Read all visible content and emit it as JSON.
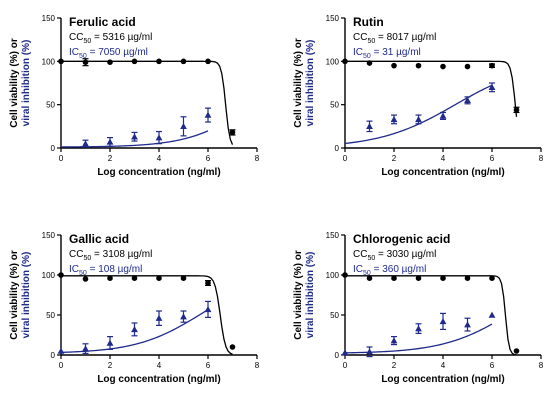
{
  "chart_data": [
    {
      "type": "scatter",
      "title": "Ferulic acid",
      "cc_label": "CC",
      "cc_sub": "50",
      "cc_value": " = 5316 µg/ml",
      "ic_label": "IC",
      "ic_sub": "50",
      "ic_value": " = 7050 µg/ml",
      "xlabel": "Log concentration (ng/ml)",
      "ylabel_1": "Cell viability (%) or",
      "ylabel_2": "viral inhibition (%)",
      "xlim": [
        0,
        8
      ],
      "ylim": [
        0,
        150
      ],
      "xticks": [
        "0",
        "2",
        "4",
        "6",
        "8"
      ],
      "yticks": [
        "0",
        "50",
        "100",
        "150"
      ],
      "series": [
        {
          "marker": "circle",
          "color": "#000000",
          "x": [
            0,
            1,
            2,
            3,
            4,
            5,
            6,
            7
          ],
          "y": [
            100,
            99,
            99,
            100,
            100,
            100,
            100,
            18
          ],
          "err": [
            0,
            4,
            0,
            0,
            0,
            0,
            0,
            3
          ],
          "fit_top": 100,
          "fit_bottom": 0,
          "fit_logec50": 6.72,
          "fit_hill": 5
        },
        {
          "marker": "triangle",
          "color": "#1f2a8c",
          "x": [
            1,
            2,
            3,
            4,
            5,
            6
          ],
          "y": [
            5,
            7,
            13,
            12,
            25,
            38
          ],
          "err": [
            4,
            5,
            5,
            7,
            11,
            8
          ],
          "fit_top": 100,
          "fit_bottom": 1,
          "fit_logec50": 7.8,
          "fit_hill": 0.35
        }
      ]
    },
    {
      "type": "scatter",
      "title": "Rutin",
      "cc_label": "CC",
      "cc_sub": "50",
      "cc_value": " = 8017 µg/ml",
      "ic_label": "IC",
      "ic_sub": "50",
      "ic_value": " = 31 µg/ml",
      "xlabel": "Log concentration (ng/ml)",
      "ylabel_1": "Cell viability (%) or",
      "ylabel_2": "viral inhibition (%)",
      "xlim": [
        0,
        8
      ],
      "ylim": [
        0,
        150
      ],
      "xticks": [
        "0",
        "2",
        "4",
        "6",
        "8"
      ],
      "yticks": [
        "0",
        "50",
        "100",
        "150"
      ],
      "series": [
        {
          "marker": "circle",
          "color": "#000000",
          "x": [
            0,
            1,
            2,
            3,
            4,
            5,
            6,
            7
          ],
          "y": [
            100,
            98,
            95,
            95,
            94,
            94,
            95,
            44
          ],
          "err": [
            0,
            0,
            0,
            0,
            0,
            0,
            2,
            3
          ],
          "fit_top": 100,
          "fit_bottom": 0,
          "fit_logec50": 6.95,
          "fit_hill": 5
        },
        {
          "marker": "triangle",
          "color": "#1f2a8c",
          "x": [
            1,
            2,
            3,
            4,
            5,
            6
          ],
          "y": [
            25,
            33,
            33,
            37,
            55,
            70
          ],
          "err": [
            6,
            5,
            5,
            4,
            4,
            5
          ],
          "fit_top": 100,
          "fit_bottom": 0,
          "fit_logec50": 4.5,
          "fit_hill": 0.28
        }
      ]
    },
    {
      "type": "scatter",
      "title": "Gallic acid",
      "cc_label": "CC",
      "cc_sub": "50",
      "cc_value": " = 3108 µg/ml",
      "ic_label": "IC",
      "ic_sub": "50",
      "ic_value": " = 108 µg/ml",
      "xlabel": "Log concentration (ng/ml)",
      "ylabel_1": "Cell viability (%) or",
      "ylabel_2": "viral inhibition (%)",
      "xlim": [
        0,
        8
      ],
      "ylim": [
        0,
        150
      ],
      "xticks": [
        "0",
        "2",
        "4",
        "6",
        "8"
      ],
      "yticks": [
        "0",
        "50",
        "100",
        "150"
      ],
      "series": [
        {
          "marker": "circle",
          "color": "#000000",
          "x": [
            0,
            1,
            2,
            3,
            4,
            5,
            6,
            7
          ],
          "y": [
            100,
            95,
            96,
            96,
            96,
            96,
            90,
            10
          ],
          "err": [
            0,
            0,
            0,
            0,
            0,
            0,
            3,
            0
          ],
          "fit_top": 99,
          "fit_bottom": 0,
          "fit_logec50": 6.5,
          "fit_hill": 4
        },
        {
          "marker": "triangle",
          "color": "#1f2a8c",
          "x": [
            0,
            1,
            2,
            3,
            4,
            5,
            6
          ],
          "y": [
            5,
            8,
            15,
            32,
            46,
            48,
            57
          ],
          "err": [
            0,
            6,
            8,
            8,
            9,
            7,
            10
          ],
          "fit_top": 100,
          "fit_bottom": 2,
          "fit_logec50": 5.7,
          "fit_hill": 0.33
        }
      ]
    },
    {
      "type": "scatter",
      "title": "Chlorogenic acid",
      "cc_label": "CC",
      "cc_sub": "50",
      "cc_value": " = 3030 µg/ml",
      "ic_label": "IC",
      "ic_sub": "50",
      "ic_value": " = 360 µg/ml",
      "xlabel": "Log concentration (ng/ml)",
      "ylabel_1": "Cell viability (%) or",
      "ylabel_2": "viral inhibition (%)",
      "xlim": [
        0,
        8
      ],
      "ylim": [
        0,
        150
      ],
      "xticks": [
        "0",
        "2",
        "4",
        "6",
        "8"
      ],
      "yticks": [
        "0",
        "50",
        "100",
        "150"
      ],
      "series": [
        {
          "marker": "circle",
          "color": "#000000",
          "x": [
            0,
            1,
            2,
            3,
            4,
            5,
            6,
            7
          ],
          "y": [
            100,
            96,
            96,
            96,
            96,
            96,
            96,
            5
          ],
          "err": [
            0,
            0,
            0,
            0,
            0,
            0,
            0,
            0
          ],
          "fit_top": 99,
          "fit_bottom": 0,
          "fit_logec50": 6.55,
          "fit_hill": 6
        },
        {
          "marker": "triangle",
          "color": "#1f2a8c",
          "x": [
            0,
            1,
            2,
            3,
            4,
            5,
            6
          ],
          "y": [
            3,
            4,
            18,
            33,
            42,
            38,
            50
          ],
          "err": [
            0,
            6,
            5,
            6,
            10,
            8,
            0
          ],
          "fit_top": 100,
          "fit_bottom": 2,
          "fit_logec50": 6.7,
          "fit_hill": 0.32
        }
      ]
    }
  ]
}
